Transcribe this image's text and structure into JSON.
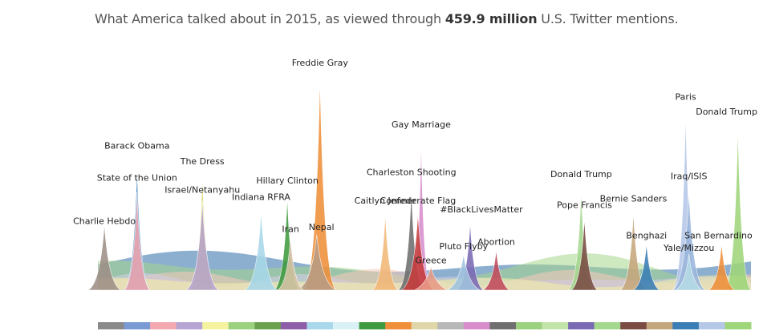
{
  "title": {
    "prefix": "What America talked about in 2015, as viewed through ",
    "bold": "459.9 million",
    "suffix": " U.S. Twitter mentions."
  },
  "chart_data": {
    "type": "area",
    "x_domain": [
      0,
      1
    ],
    "y_domain": [
      0,
      1
    ],
    "peaks": [
      {
        "label": "Charlie Hebdo",
        "x": 0.01,
        "value": 0.31,
        "width": 0.05,
        "color": "#9e8f86"
      },
      {
        "label": "Barack Obama",
        "x": 0.06,
        "value": 0.58,
        "width": 0.04,
        "color": "#3f7fbf"
      },
      {
        "label": "State of the Union",
        "x": 0.06,
        "value": 0.46,
        "width": 0.04,
        "color": "#f4a9b0"
      },
      {
        "label": "The Dress",
        "x": 0.16,
        "value": 0.53,
        "width": 0.04,
        "color": "#d4cf44"
      },
      {
        "label": "Israel/Netanyahu",
        "x": 0.16,
        "value": 0.42,
        "width": 0.05,
        "color": "#b7a4d3"
      },
      {
        "label": "Indiana RFRA",
        "x": 0.25,
        "value": 0.37,
        "width": 0.05,
        "color": "#a8d8ea"
      },
      {
        "label": "Hillary Clinton",
        "x": 0.29,
        "value": 0.44,
        "width": 0.04,
        "color": "#3f9a3f"
      },
      {
        "label": "Iran",
        "x": 0.295,
        "value": 0.25,
        "width": 0.04,
        "color": "#d9c4a8"
      },
      {
        "label": "Freddie Gray",
        "x": 0.34,
        "value": 1.0,
        "width": 0.05,
        "color": "#ef8f3a"
      },
      {
        "label": "Nepal",
        "x": 0.335,
        "value": 0.26,
        "width": 0.06,
        "color": "#b89c84"
      },
      {
        "label": "Caitlyn Jenner",
        "x": 0.44,
        "value": 0.36,
        "width": 0.04,
        "color": "#f2b878"
      },
      {
        "label": "Charleston Shooting",
        "x": 0.48,
        "value": 0.48,
        "width": 0.04,
        "color": "#6f6f6f"
      },
      {
        "label": "Confederate Flag",
        "x": 0.49,
        "value": 0.36,
        "width": 0.05,
        "color": "#c73c3c"
      },
      {
        "label": "Gay Marriage",
        "x": 0.495,
        "value": 0.71,
        "width": 0.03,
        "color": "#d88ecd"
      },
      {
        "label": "Greece",
        "x": 0.51,
        "value": 0.11,
        "width": 0.05,
        "color": "#e89a86"
      },
      {
        "label": "#BlackLivesMatter",
        "x": 0.57,
        "value": 0.32,
        "width": 0.04,
        "color": "#7a6ab3"
      },
      {
        "label": "Pluto Flyby",
        "x": 0.56,
        "value": 0.17,
        "width": 0.05,
        "color": "#a1c3df"
      },
      {
        "label": "Abortion",
        "x": 0.61,
        "value": 0.19,
        "width": 0.04,
        "color": "#c04b5c"
      },
      {
        "label": "Donald Trump",
        "x": 0.74,
        "value": 0.47,
        "width": 0.04,
        "color": "#a5d88f"
      },
      {
        "label": "Pope Francis",
        "x": 0.745,
        "value": 0.34,
        "width": 0.04,
        "color": "#7a4c44"
      },
      {
        "label": "Bernie Sanders",
        "x": 0.82,
        "value": 0.37,
        "width": 0.04,
        "color": "#c5a77d"
      },
      {
        "label": "Benghazi",
        "x": 0.84,
        "value": 0.22,
        "width": 0.04,
        "color": "#3a7eb5"
      },
      {
        "label": "Paris",
        "x": 0.9,
        "value": 0.84,
        "width": 0.04,
        "color": "#b6c8e8"
      },
      {
        "label": "Iraq/ISIS",
        "x": 0.905,
        "value": 0.46,
        "width": 0.05,
        "color": "#9bb7dc"
      },
      {
        "label": "Yale/Mizzou",
        "x": 0.905,
        "value": 0.17,
        "width": 0.04,
        "color": "#b5dbe6"
      },
      {
        "label": "Donald Trump",
        "x": 0.98,
        "value": 0.77,
        "width": 0.04,
        "color": "#9fd67a"
      },
      {
        "label": "San Bernardino",
        "x": 0.955,
        "value": 0.22,
        "width": 0.04,
        "color": "#ef8f3a"
      }
    ],
    "legend_strip_colors": [
      "#8a8a8a",
      "#7a9ad4",
      "#f4a9b0",
      "#b7a4d3",
      "#f6f3a0",
      "#9bd17f",
      "#6aa14d",
      "#8e5fa8",
      "#a8d8ea",
      "#d9f0f5",
      "#3f9a3f",
      "#ef8f3a",
      "#e0d7a8",
      "#b8b8b8",
      "#d88ecd",
      "#6f6f6f",
      "#9bd17f",
      "#c2e4a8",
      "#7a6ab3",
      "#a5d88f",
      "#7a4c44",
      "#c5a77d",
      "#3a7eb5",
      "#b6c8e8",
      "#9fd67a"
    ]
  }
}
